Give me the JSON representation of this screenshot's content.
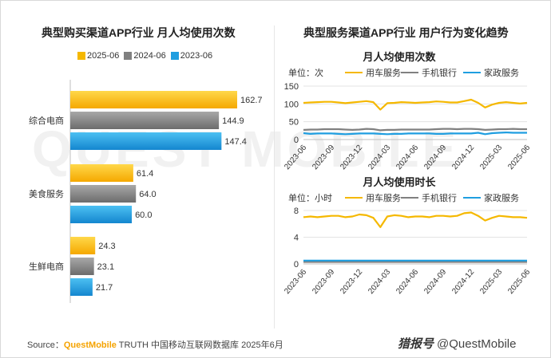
{
  "left": {
    "title": "典型购买渠道APP行业 月人均使用次数",
    "legend": [
      {
        "label": "2025-06",
        "color": "#f5b800"
      },
      {
        "label": "2024-06",
        "color": "#808080"
      },
      {
        "label": "2023-06",
        "color": "#1f9ee0"
      }
    ]
  },
  "right": {
    "title": "典型服务渠道APP行业 用户行为变化趋势",
    "top_legend": {
      "unit": "单位：次",
      "names": [
        "用车服务",
        "手机银行",
        "家政服务"
      ]
    },
    "bottom_legend": {
      "unit": "单位：小时",
      "names": [
        "用车服务",
        "手机银行",
        "家政服务"
      ]
    }
  },
  "source": {
    "prefix": "Source：",
    "brand": "QuestMobile",
    "rest": " TRUTH 中国移动互联网数据库 2025年6月"
  },
  "watermark": {
    "logo": "猎报号",
    "handle": "@QuestMobile"
  },
  "bg_watermark": "QUEST MOBILE",
  "chart_data": [
    {
      "type": "bar",
      "orientation": "horizontal",
      "title": "典型购买渠道APP行业 月人均使用次数",
      "categories": [
        "综合电商",
        "美食服务",
        "生鲜电商"
      ],
      "series": [
        {
          "name": "2025-06",
          "values": [
            162.7,
            61.4,
            24.3
          ],
          "color": "#f5b800"
        },
        {
          "name": "2024-06",
          "values": [
            144.9,
            64.0,
            23.1
          ],
          "color": "#808080"
        },
        {
          "name": "2023-06",
          "values": [
            147.4,
            60.0,
            21.7
          ],
          "color": "#1f9ee0"
        }
      ],
      "legend": "top"
    },
    {
      "type": "line",
      "title": "月人均使用次数",
      "unit": "单位：次",
      "x_ticks": [
        "2023-06",
        "2023-09",
        "2023-12",
        "2024-03",
        "2024-06",
        "2024-09",
        "2024-12",
        "2025-03",
        "2025-06"
      ],
      "ylim": [
        0,
        150
      ],
      "y_ticks": [
        0,
        50,
        100,
        150
      ],
      "grid": true,
      "series": [
        {
          "name": "用车服务",
          "color": "#f5b800",
          "values": [
            103,
            104,
            105,
            106,
            106,
            104,
            102,
            104,
            106,
            108,
            105,
            84,
            102,
            103,
            105,
            104,
            103,
            104,
            105,
            107,
            106,
            104,
            104,
            108,
            112,
            103,
            90,
            98,
            103,
            105,
            103,
            101,
            103
          ]
        },
        {
          "name": "手机银行",
          "color": "#808080",
          "values": [
            27,
            28,
            28,
            29,
            29,
            29,
            28,
            27,
            28,
            30,
            29,
            26,
            27,
            27,
            28,
            28,
            28,
            28,
            28,
            29,
            30,
            30,
            29,
            30,
            30,
            29,
            27,
            28,
            29,
            29,
            30,
            29,
            29
          ]
        },
        {
          "name": "家政服务",
          "color": "#1f9ee0",
          "values": [
            18,
            16,
            17,
            17,
            17,
            16,
            15,
            16,
            17,
            17,
            17,
            16,
            15,
            16,
            16,
            17,
            17,
            17,
            17,
            16,
            16,
            17,
            17,
            17,
            17,
            19,
            15,
            18,
            19,
            20,
            19,
            19,
            19
          ]
        }
      ]
    },
    {
      "type": "line",
      "title": "月人均使用时长",
      "unit": "单位：小时",
      "x_ticks": [
        "2023-06",
        "2023-09",
        "2023-12",
        "2024-03",
        "2024-06",
        "2024-09",
        "2024-12",
        "2025-03",
        "2025-06"
      ],
      "ylim": [
        0,
        8
      ],
      "y_ticks": [
        0,
        4,
        8
      ],
      "grid": true,
      "series": [
        {
          "name": "用车服务",
          "color": "#f5b800",
          "values": [
            7.0,
            7.1,
            7.0,
            7.1,
            7.2,
            7.2,
            7.0,
            7.1,
            7.4,
            7.3,
            6.9,
            5.5,
            7.1,
            7.3,
            7.2,
            7.0,
            7.1,
            7.1,
            7.0,
            7.2,
            7.2,
            7.1,
            7.2,
            7.6,
            7.7,
            7.2,
            6.5,
            6.9,
            7.2,
            7.1,
            7.0,
            7.0,
            6.9
          ]
        },
        {
          "name": "手机银行",
          "color": "#808080",
          "values": [
            0.3,
            0.3,
            0.3,
            0.3,
            0.3,
            0.3,
            0.3,
            0.3,
            0.3,
            0.3,
            0.3,
            0.3,
            0.3,
            0.3,
            0.3,
            0.3,
            0.3,
            0.3,
            0.3,
            0.3,
            0.3,
            0.3,
            0.3,
            0.3,
            0.3,
            0.3,
            0.3,
            0.3,
            0.3,
            0.3,
            0.3,
            0.3,
            0.3
          ]
        },
        {
          "name": "家政服务",
          "color": "#1f9ee0",
          "values": [
            0.5,
            0.5,
            0.5,
            0.5,
            0.5,
            0.5,
            0.5,
            0.5,
            0.5,
            0.5,
            0.5,
            0.5,
            0.5,
            0.5,
            0.5,
            0.5,
            0.5,
            0.5,
            0.5,
            0.5,
            0.5,
            0.5,
            0.5,
            0.5,
            0.5,
            0.5,
            0.5,
            0.5,
            0.5,
            0.5,
            0.5,
            0.5,
            0.5
          ]
        }
      ]
    }
  ]
}
